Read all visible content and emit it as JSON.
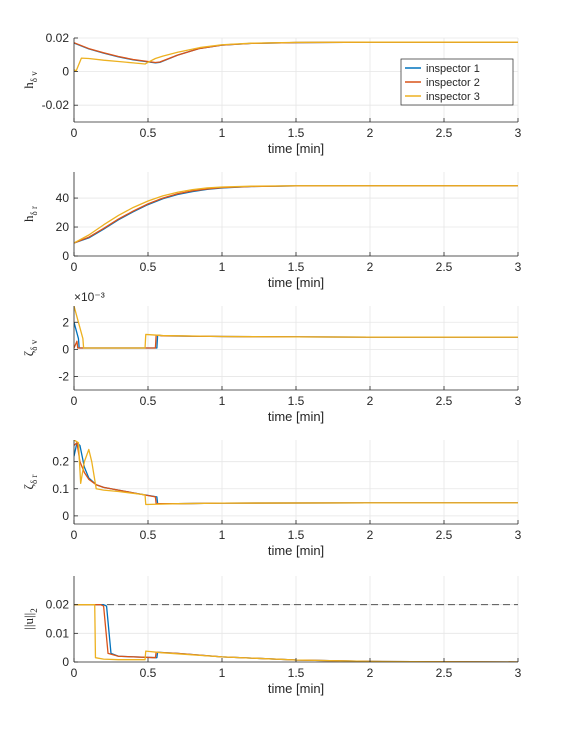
{
  "figure": {
    "legend": {
      "placement": "top-right of first panel",
      "entries": [
        "inspector 1",
        "inspector 2",
        "inspector 3"
      ]
    },
    "series_colors": [
      "#0072BD",
      "#D95319",
      "#EDB120"
    ],
    "reference_line_color": "#555555"
  },
  "chart_data": [
    {
      "type": "line",
      "title": "",
      "xlabel": "time [min]",
      "ylabel": {
        "main": "h",
        "sub": "δ v"
      },
      "xlim": [
        0,
        3
      ],
      "ylim": [
        -0.03,
        0.02
      ],
      "xticks": [
        0,
        0.5,
        1,
        1.5,
        2,
        2.5,
        3
      ],
      "xtick_labels": [
        "0",
        "0.5",
        "1",
        "1.5",
        "2",
        "2.5",
        "3"
      ],
      "yticks": [
        -0.02,
        0,
        0.02
      ],
      "ytick_labels": [
        "-0.02",
        "0",
        "0.02"
      ],
      "exponent_label": "",
      "grid": true,
      "series": [
        {
          "name": "inspector 1",
          "x": [
            0,
            0.1,
            0.2,
            0.3,
            0.4,
            0.5,
            0.55,
            0.58,
            0.7,
            0.85,
            1,
            1.2,
            1.5,
            2,
            2.5,
            3
          ],
          "y": [
            0.017,
            0.0135,
            0.011,
            0.0088,
            0.007,
            0.0058,
            0.0052,
            0.0055,
            0.0098,
            0.0138,
            0.0158,
            0.0168,
            0.0173,
            0.0175,
            0.0175,
            0.0175
          ]
        },
        {
          "name": "inspector 2",
          "x": [
            0,
            0.1,
            0.2,
            0.3,
            0.4,
            0.5,
            0.55,
            0.58,
            0.7,
            0.85,
            1,
            1.2,
            1.5,
            2,
            2.5,
            3
          ],
          "y": [
            0.0172,
            0.0137,
            0.0112,
            0.009,
            0.0072,
            0.006,
            0.0054,
            0.0057,
            0.0098,
            0.0138,
            0.0158,
            0.0168,
            0.0173,
            0.0175,
            0.0175,
            0.0175
          ]
        },
        {
          "name": "inspector 3",
          "x": [
            0,
            0.015,
            0.05,
            0.1,
            0.2,
            0.3,
            0.4,
            0.48,
            0.5,
            0.55,
            0.6,
            0.7,
            0.85,
            1,
            1.2,
            1.5,
            2,
            2.5,
            3
          ],
          "y": [
            0.001,
            0.0005,
            0.008,
            0.0078,
            0.0068,
            0.006,
            0.0052,
            0.0045,
            0.0055,
            0.0078,
            0.0092,
            0.0115,
            0.0143,
            0.016,
            0.0169,
            0.0174,
            0.0175,
            0.0175,
            0.0175
          ]
        }
      ],
      "hlines": []
    },
    {
      "type": "line",
      "title": "",
      "xlabel": "time [min]",
      "ylabel": {
        "main": "h",
        "sub": "δ r"
      },
      "xlim": [
        0,
        3
      ],
      "ylim": [
        0,
        58
      ],
      "xticks": [
        0,
        0.5,
        1,
        1.5,
        2,
        2.5,
        3
      ],
      "xtick_labels": [
        "0",
        "0.5",
        "1",
        "1.5",
        "2",
        "2.5",
        "3"
      ],
      "yticks": [
        0,
        20,
        40
      ],
      "ytick_labels": [
        "0",
        "20",
        "40"
      ],
      "exponent_label": "",
      "grid": true,
      "series": [
        {
          "name": "inspector 1",
          "x": [
            0,
            0.1,
            0.2,
            0.3,
            0.4,
            0.5,
            0.6,
            0.7,
            0.8,
            0.9,
            1,
            1.2,
            1.5,
            2,
            2.5,
            3
          ],
          "y": [
            9,
            12.5,
            18.5,
            25,
            30.5,
            35.5,
            39.5,
            42.5,
            44.5,
            46,
            47,
            48,
            48.4,
            48.5,
            48.5,
            48.5
          ]
        },
        {
          "name": "inspector 2",
          "x": [
            0,
            0.1,
            0.2,
            0.3,
            0.4,
            0.5,
            0.6,
            0.7,
            0.8,
            0.9,
            1,
            1.2,
            1.5,
            2,
            2.5,
            3
          ],
          "y": [
            9,
            13,
            19,
            25.5,
            31,
            36,
            40,
            43,
            45,
            46.3,
            47.2,
            48,
            48.4,
            48.5,
            48.5,
            48.5
          ]
        },
        {
          "name": "inspector 3",
          "x": [
            0,
            0.1,
            0.2,
            0.3,
            0.4,
            0.5,
            0.6,
            0.7,
            0.8,
            0.9,
            1,
            1.2,
            1.5,
            2,
            2.5,
            3
          ],
          "y": [
            9,
            14.5,
            21.5,
            28,
            33.5,
            38,
            41.5,
            44,
            45.8,
            47,
            47.6,
            48.2,
            48.5,
            48.5,
            48.5,
            48.5
          ]
        }
      ],
      "hlines": []
    },
    {
      "type": "line",
      "title": "",
      "xlabel": "time [min]",
      "ylabel": {
        "main": "ζ",
        "sub": "δ v"
      },
      "xlim": [
        0,
        3
      ],
      "ylim": [
        -3,
        3.2
      ],
      "xticks": [
        0,
        0.5,
        1,
        1.5,
        2,
        2.5,
        3
      ],
      "xtick_labels": [
        "0",
        "0.5",
        "1",
        "1.5",
        "2",
        "2.5",
        "3"
      ],
      "yticks": [
        -2,
        0,
        2
      ],
      "ytick_labels": [
        "-2",
        "0",
        "2"
      ],
      "exponent_label": "×10⁻³",
      "grid": true,
      "series": [
        {
          "name": "inspector 1",
          "x": [
            0,
            0.03,
            0.035,
            0.56,
            0.565,
            0.6,
            1,
            1.5,
            2,
            3
          ],
          "y": [
            2.0,
            0.8,
            0.1,
            0.1,
            1.05,
            1.0,
            0.95,
            0.92,
            0.9,
            0.9
          ]
        },
        {
          "name": "inspector 2",
          "x": [
            0,
            0.02,
            0.025,
            0.55,
            0.555,
            0.6,
            1,
            1.5,
            2,
            3
          ],
          "y": [
            0.1,
            0.6,
            0.1,
            0.1,
            1.05,
            1.0,
            0.95,
            0.92,
            0.9,
            0.9
          ]
        },
        {
          "name": "inspector 3",
          "x": [
            0,
            0.06,
            0.065,
            0.48,
            0.485,
            0.6,
            1,
            1.5,
            2,
            3
          ],
          "y": [
            3.2,
            0.8,
            0.1,
            0.1,
            1.1,
            1.02,
            0.95,
            0.92,
            0.9,
            0.9
          ]
        }
      ],
      "hlines": []
    },
    {
      "type": "line",
      "title": "",
      "xlabel": "time [min]",
      "ylabel": {
        "main": "ζ",
        "sub": "δ r"
      },
      "xlim": [
        0,
        3
      ],
      "ylim": [
        -0.03,
        0.28
      ],
      "xticks": [
        0,
        0.5,
        1,
        1.5,
        2,
        2.5,
        3
      ],
      "xtick_labels": [
        "0",
        "0.5",
        "1",
        "1.5",
        "2",
        "2.5",
        "3"
      ],
      "yticks": [
        0,
        0.1,
        0.2
      ],
      "ytick_labels": [
        "0",
        "0.1",
        "0.2"
      ],
      "exponent_label": "",
      "grid": true,
      "series": [
        {
          "name": "inspector 1",
          "x": [
            0,
            0.02,
            0.04,
            0.07,
            0.1,
            0.15,
            0.2,
            0.3,
            0.4,
            0.56,
            0.565,
            0.7,
            1,
            2,
            3
          ],
          "y": [
            0.22,
            0.27,
            0.26,
            0.18,
            0.14,
            0.115,
            0.105,
            0.095,
            0.085,
            0.07,
            0.045,
            0.045,
            0.047,
            0.048,
            0.048
          ]
        },
        {
          "name": "inspector 2",
          "x": [
            0,
            0.02,
            0.04,
            0.07,
            0.1,
            0.15,
            0.2,
            0.3,
            0.4,
            0.55,
            0.555,
            0.7,
            1,
            2,
            3
          ],
          "y": [
            0.26,
            0.27,
            0.2,
            0.16,
            0.135,
            0.115,
            0.105,
            0.095,
            0.085,
            0.07,
            0.045,
            0.045,
            0.047,
            0.048,
            0.048
          ]
        },
        {
          "name": "inspector 3",
          "x": [
            0,
            0.03,
            0.045,
            0.07,
            0.1,
            0.12,
            0.15,
            0.2,
            0.3,
            0.4,
            0.48,
            0.485,
            0.7,
            1,
            2,
            3
          ],
          "y": [
            0.28,
            0.27,
            0.12,
            0.2,
            0.245,
            0.2,
            0.1,
            0.095,
            0.09,
            0.083,
            0.078,
            0.042,
            0.045,
            0.047,
            0.048,
            0.048
          ]
        }
      ],
      "hlines": []
    },
    {
      "type": "line",
      "title": "",
      "xlabel": "time [min]",
      "ylabel": {
        "main": "||u||",
        "sub": "2"
      },
      "xlim": [
        0,
        3
      ],
      "ylim": [
        0,
        0.03
      ],
      "xticks": [
        0,
        0.5,
        1,
        1.5,
        2,
        2.5,
        3
      ],
      "xtick_labels": [
        "0",
        "0.5",
        "1",
        "1.5",
        "2",
        "2.5",
        "3"
      ],
      "yticks": [
        0,
        0.01,
        0.02
      ],
      "ytick_labels": [
        "0",
        "0.01",
        "0.02"
      ],
      "exponent_label": "",
      "grid": true,
      "series": [
        {
          "name": "inspector 1",
          "x": [
            0,
            0.2,
            0.22,
            0.25,
            0.3,
            0.56,
            0.565,
            0.7,
            1,
            1.5,
            2,
            3
          ],
          "y": [
            0.02,
            0.02,
            0.0195,
            0.003,
            0.002,
            0.0015,
            0.0034,
            0.003,
            0.0018,
            0.0007,
            0.0002,
            0
          ]
        },
        {
          "name": "inspector 2",
          "x": [
            0,
            0.18,
            0.2,
            0.23,
            0.3,
            0.55,
            0.555,
            0.7,
            1,
            1.5,
            2,
            3
          ],
          "y": [
            0.02,
            0.02,
            0.0195,
            0.003,
            0.002,
            0.0015,
            0.0034,
            0.003,
            0.0018,
            0.0007,
            0.0002,
            0
          ]
        },
        {
          "name": "inspector 3",
          "x": [
            0,
            0.14,
            0.145,
            0.2,
            0.3,
            0.48,
            0.485,
            0.6,
            1,
            1.5,
            2,
            3
          ],
          "y": [
            0.02,
            0.02,
            0.0015,
            0.001,
            0.0008,
            0.0008,
            0.0038,
            0.0032,
            0.0018,
            0.0007,
            0.0002,
            0
          ]
        }
      ],
      "hlines": [
        {
          "y": 0.02,
          "style": "dashed"
        }
      ]
    }
  ]
}
